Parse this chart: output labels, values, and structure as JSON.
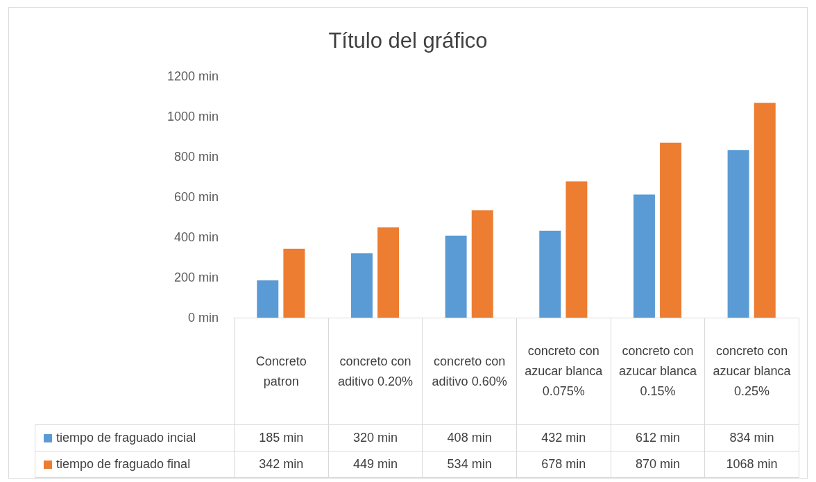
{
  "chart_data": {
    "type": "bar",
    "title": "Título del gráfico",
    "categories": [
      "Concreto patron",
      "concreto con aditivo 0.20%",
      "concreto con aditivo 0.60%",
      "concreto con azucar blanca 0.075%",
      "concreto con azucar blanca 0.15%",
      "concreto con azucar blanca 0.25%"
    ],
    "series": [
      {
        "name": "tiempo de fraguado incial",
        "color": "#5b9bd5",
        "values": [
          185,
          320,
          408,
          432,
          612,
          834
        ],
        "value_labels": [
          "185 min",
          "320 min",
          "408 min",
          "432 min",
          "612 min",
          "834 min"
        ]
      },
      {
        "name": "tiempo de fraguado final",
        "color": "#ed7d31",
        "values": [
          342,
          449,
          534,
          678,
          870,
          1068
        ],
        "value_labels": [
          "342 min",
          "449 min",
          "534 min",
          "678 min",
          "870 min",
          "1068 min"
        ]
      }
    ],
    "ylim": [
      0,
      1200
    ],
    "yticks": [
      {
        "value": 0,
        "label": "0 min"
      },
      {
        "value": 200,
        "label": "200 min"
      },
      {
        "value": 400,
        "label": "400 min"
      },
      {
        "value": 600,
        "label": "600 min"
      },
      {
        "value": 800,
        "label": "800 min"
      },
      {
        "value": 1000,
        "label": "1000 min"
      },
      {
        "value": 1200,
        "label": "1200 min"
      }
    ],
    "legend": "bottom"
  }
}
